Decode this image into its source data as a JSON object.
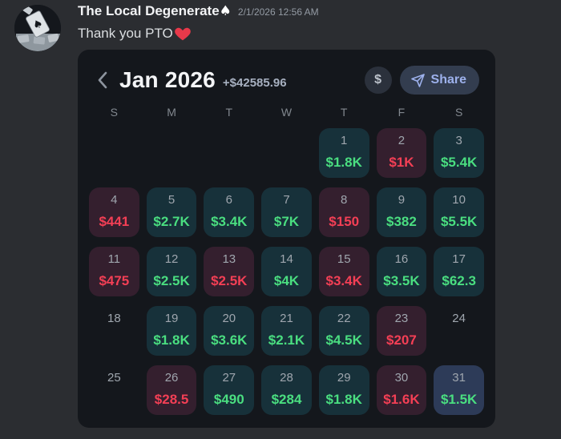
{
  "message": {
    "username": "The Local Degenerate",
    "username_suffix": "♠",
    "timestamp": "2/1/2026 12:56 AM",
    "text": "Thank you PTO",
    "heart_icon": "red-heart"
  },
  "calendar": {
    "back_icon": "chevron-left",
    "title": "Jan 2026",
    "total": "+$42585.96",
    "currency_button_label": "$",
    "share_button_label": "Share",
    "share_icon": "paper-plane-send",
    "weekdays": [
      "S",
      "M",
      "T",
      "W",
      "T",
      "F",
      "S"
    ],
    "colors": {
      "card_bg": "#14171c",
      "profit_tile_bg": "#17313a",
      "loss_tile_bg": "#341f2e",
      "today_tile_bg": "#2d3b58",
      "profit_text": "#4ade80",
      "loss_text": "#f43f55"
    },
    "cells": [
      {
        "day": "",
        "value": "",
        "type": "blank"
      },
      {
        "day": "",
        "value": "",
        "type": "blank"
      },
      {
        "day": "",
        "value": "",
        "type": "blank"
      },
      {
        "day": "",
        "value": "",
        "type": "blank"
      },
      {
        "day": "1",
        "value": "$1.8K",
        "type": "profit"
      },
      {
        "day": "2",
        "value": "$1K",
        "type": "loss"
      },
      {
        "day": "3",
        "value": "$5.4K",
        "type": "profit"
      },
      {
        "day": "4",
        "value": "$441",
        "type": "loss"
      },
      {
        "day": "5",
        "value": "$2.7K",
        "type": "profit"
      },
      {
        "day": "6",
        "value": "$3.4K",
        "type": "profit"
      },
      {
        "day": "7",
        "value": "$7K",
        "type": "profit"
      },
      {
        "day": "8",
        "value": "$150",
        "type": "loss"
      },
      {
        "day": "9",
        "value": "$382",
        "type": "profit"
      },
      {
        "day": "10",
        "value": "$5.5K",
        "type": "profit"
      },
      {
        "day": "11",
        "value": "$475",
        "type": "loss"
      },
      {
        "day": "12",
        "value": "$2.5K",
        "type": "profit"
      },
      {
        "day": "13",
        "value": "$2.5K",
        "type": "loss"
      },
      {
        "day": "14",
        "value": "$4K",
        "type": "profit"
      },
      {
        "day": "15",
        "value": "$3.4K",
        "type": "loss"
      },
      {
        "day": "16",
        "value": "$3.5K",
        "type": "profit"
      },
      {
        "day": "17",
        "value": "$62.3",
        "type": "profit"
      },
      {
        "day": "18",
        "value": "",
        "type": "plain"
      },
      {
        "day": "19",
        "value": "$1.8K",
        "type": "profit"
      },
      {
        "day": "20",
        "value": "$3.6K",
        "type": "profit"
      },
      {
        "day": "21",
        "value": "$2.1K",
        "type": "profit"
      },
      {
        "day": "22",
        "value": "$4.5K",
        "type": "profit"
      },
      {
        "day": "23",
        "value": "$207",
        "type": "loss"
      },
      {
        "day": "24",
        "value": "",
        "type": "plain"
      },
      {
        "day": "25",
        "value": "",
        "type": "plain"
      },
      {
        "day": "26",
        "value": "$28.5",
        "type": "loss"
      },
      {
        "day": "27",
        "value": "$490",
        "type": "profit"
      },
      {
        "day": "28",
        "value": "$284",
        "type": "profit"
      },
      {
        "day": "29",
        "value": "$1.8K",
        "type": "profit"
      },
      {
        "day": "30",
        "value": "$1.6K",
        "type": "loss"
      },
      {
        "day": "31",
        "value": "$1.5K",
        "type": "today"
      }
    ]
  }
}
